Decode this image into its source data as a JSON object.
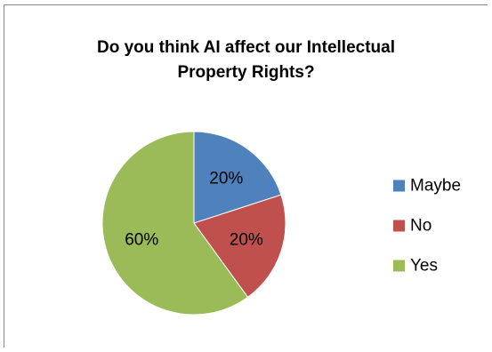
{
  "chart_data": {
    "type": "pie",
    "title": "Do you think AI affect our Intellectual\nProperty Rights?",
    "categories": [
      "Maybe",
      "No",
      "Yes"
    ],
    "values": [
      20,
      20,
      60
    ],
    "data_labels": [
      "20%",
      "20%",
      "60%"
    ],
    "legend": {
      "placement": "right",
      "entries": [
        "Maybe",
        "No",
        "Yes"
      ]
    },
    "colors": [
      "#4F81BD",
      "#C0504D",
      "#9BBB59"
    ]
  }
}
